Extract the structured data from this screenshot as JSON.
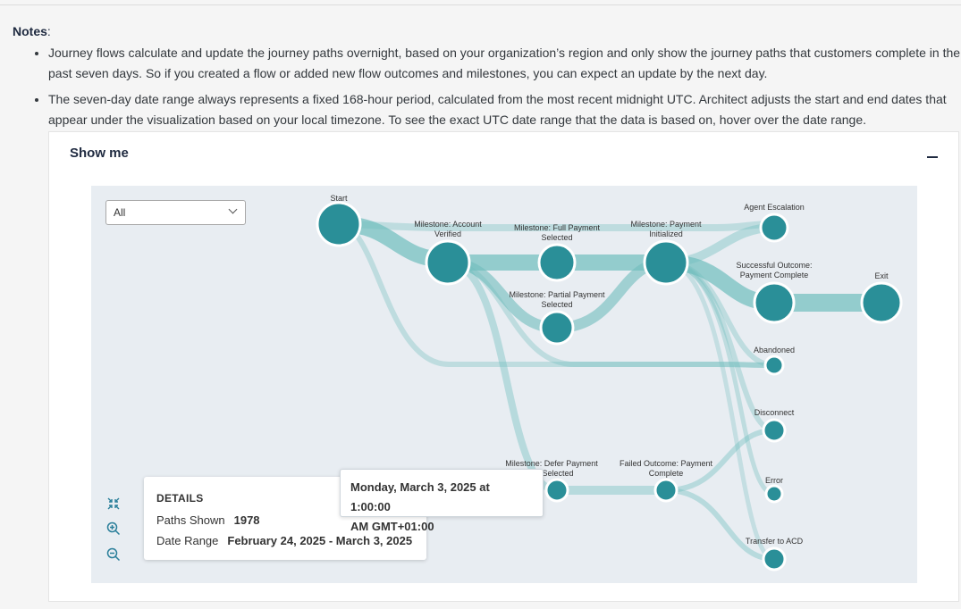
{
  "notes": {
    "title": "Notes",
    "colon": ":",
    "items": [
      "Journey flows calculate and update the journey paths overnight, based on your organization’s region and only show the journey paths that customers complete in the past seven days. So if you created a flow or added new flow outcomes and milestones, you can expect an update by the next day.",
      "The seven-day date range always represents a fixed 168-hour period, calculated from the most recent midnight UTC. Architect adjusts the start and end dates that appear under the visualization based on your local timezone. To see the exact UTC date range that the data is based on, hover over the date range."
    ]
  },
  "panel": {
    "title": "Show me",
    "collapse_icon": "minus-icon"
  },
  "filter": {
    "value": "All"
  },
  "nodes": {
    "start": "Start",
    "account_verified": [
      "Milestone: Account",
      "Verified"
    ],
    "full_payment": [
      "Milestone: Full Payment",
      "Selected"
    ],
    "payment_initialized": [
      "Milestone: Payment",
      "Initialized"
    ],
    "partial_payment": [
      "Milestone: Partial Payment",
      "Selected"
    ],
    "defer_payment": [
      "Milestone: Defer Payment",
      "Selected"
    ],
    "failed_outcome": [
      "Failed Outcome: Payment",
      "Complete"
    ],
    "agent_escalation": "Agent Escalation",
    "successful_outcome": [
      "Successful Outcome:",
      "Payment Complete"
    ],
    "exit": "Exit",
    "abandoned": "Abandoned",
    "disconnect": "Disconnect",
    "error": "Error",
    "transfer_acd": "Transfer to ACD"
  },
  "details": {
    "heading": "DETAILS",
    "paths_label": "Paths Shown",
    "paths_value": "1978",
    "range_label": "Date Range",
    "range_value": "February 24, 2025 - March 3, 2025"
  },
  "tooltip": {
    "line1": "Monday, March 3, 2025 at 1:00:00",
    "line2": "AM GMT+01:00"
  },
  "zoom_controls": [
    "fit-icon",
    "zoom-in-icon",
    "zoom-out-icon"
  ],
  "colors": {
    "node": "#2a8f98",
    "link": "#6fbdbd",
    "background": "#e8edf2"
  }
}
